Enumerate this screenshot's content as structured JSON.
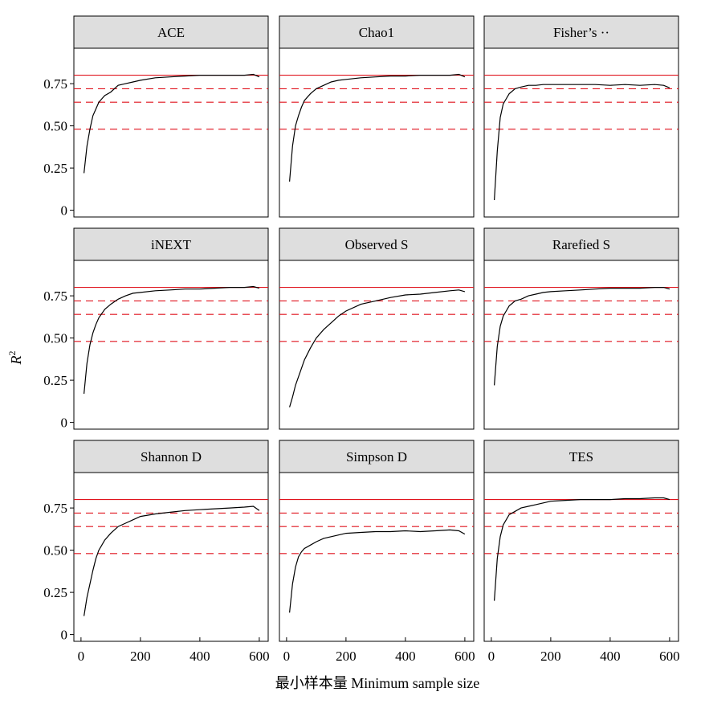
{
  "chart_data": {
    "type": "line",
    "layout": "3x3 facets",
    "xlabel": "最小样本量 Minimum sample size",
    "ylabel": "R²",
    "ylabel_base": "R",
    "ylabel_sup": "2",
    "xlim": [
      -24,
      630
    ],
    "ylim": [
      -0.04,
      0.96
    ],
    "x_ticks": [
      "0",
      "200",
      "400",
      "600"
    ],
    "x_tick_values": [
      0,
      200,
      400,
      600
    ],
    "y_ticks": [
      "0",
      "0.25",
      "0.50",
      "0.75"
    ],
    "y_tick_values": [
      0,
      0.25,
      0.5,
      0.75
    ],
    "reference_lines": [
      {
        "value": 0.8,
        "style": "solid",
        "color": "#e0141e"
      },
      {
        "value": 0.72,
        "style": "dashed",
        "color": "#e0141e"
      },
      {
        "value": 0.64,
        "style": "dashed",
        "color": "#e0141e"
      },
      {
        "value": 0.48,
        "style": "dashed",
        "color": "#e0141e"
      }
    ],
    "line_color": "#000000",
    "strip_color": "#dedede",
    "x": [
      10,
      20,
      30,
      40,
      50,
      60,
      80,
      100,
      125,
      150,
      175,
      200,
      250,
      300,
      350,
      400,
      450,
      500,
      550,
      580,
      600
    ],
    "series": [
      {
        "name": "ACE",
        "values": [
          0.22,
          0.38,
          0.48,
          0.56,
          0.6,
          0.64,
          0.68,
          0.7,
          0.74,
          0.75,
          0.76,
          0.77,
          0.785,
          0.79,
          0.795,
          0.8,
          0.8,
          0.8,
          0.8,
          0.805,
          0.79
        ]
      },
      {
        "name": "Chao1",
        "values": [
          0.17,
          0.38,
          0.5,
          0.56,
          0.61,
          0.65,
          0.69,
          0.72,
          0.74,
          0.76,
          0.77,
          0.775,
          0.785,
          0.79,
          0.795,
          0.795,
          0.8,
          0.8,
          0.8,
          0.805,
          0.79
        ]
      },
      {
        "name": "Fisher’s ··",
        "values": [
          0.06,
          0.35,
          0.55,
          0.63,
          0.66,
          0.69,
          0.72,
          0.73,
          0.74,
          0.74,
          0.745,
          0.745,
          0.745,
          0.745,
          0.745,
          0.74,
          0.745,
          0.74,
          0.745,
          0.74,
          0.725
        ]
      },
      {
        "name": "iNEXT",
        "values": [
          0.17,
          0.35,
          0.46,
          0.53,
          0.58,
          0.62,
          0.67,
          0.7,
          0.73,
          0.75,
          0.765,
          0.77,
          0.78,
          0.785,
          0.79,
          0.79,
          0.795,
          0.8,
          0.8,
          0.805,
          0.795
        ]
      },
      {
        "name": "Observed S",
        "values": [
          0.09,
          0.15,
          0.22,
          0.27,
          0.32,
          0.37,
          0.44,
          0.5,
          0.55,
          0.59,
          0.63,
          0.66,
          0.7,
          0.72,
          0.74,
          0.755,
          0.76,
          0.77,
          0.78,
          0.785,
          0.775
        ]
      },
      {
        "name": "Rarefied S",
        "values": [
          0.22,
          0.45,
          0.57,
          0.63,
          0.66,
          0.69,
          0.72,
          0.73,
          0.75,
          0.76,
          0.77,
          0.775,
          0.78,
          0.785,
          0.79,
          0.795,
          0.795,
          0.795,
          0.8,
          0.8,
          0.79
        ]
      },
      {
        "name": "Shannon D",
        "values": [
          0.11,
          0.22,
          0.3,
          0.38,
          0.45,
          0.5,
          0.56,
          0.6,
          0.64,
          0.66,
          0.68,
          0.7,
          0.715,
          0.725,
          0.735,
          0.74,
          0.745,
          0.75,
          0.755,
          0.76,
          0.735
        ]
      },
      {
        "name": "Simpson D",
        "values": [
          0.13,
          0.3,
          0.4,
          0.46,
          0.49,
          0.51,
          0.53,
          0.55,
          0.57,
          0.58,
          0.59,
          0.6,
          0.605,
          0.61,
          0.61,
          0.615,
          0.61,
          0.615,
          0.62,
          0.615,
          0.595
        ]
      },
      {
        "name": "TES",
        "values": [
          0.2,
          0.45,
          0.58,
          0.65,
          0.68,
          0.71,
          0.73,
          0.75,
          0.76,
          0.77,
          0.78,
          0.79,
          0.795,
          0.8,
          0.8,
          0.8,
          0.805,
          0.805,
          0.81,
          0.81,
          0.8
        ]
      }
    ]
  }
}
